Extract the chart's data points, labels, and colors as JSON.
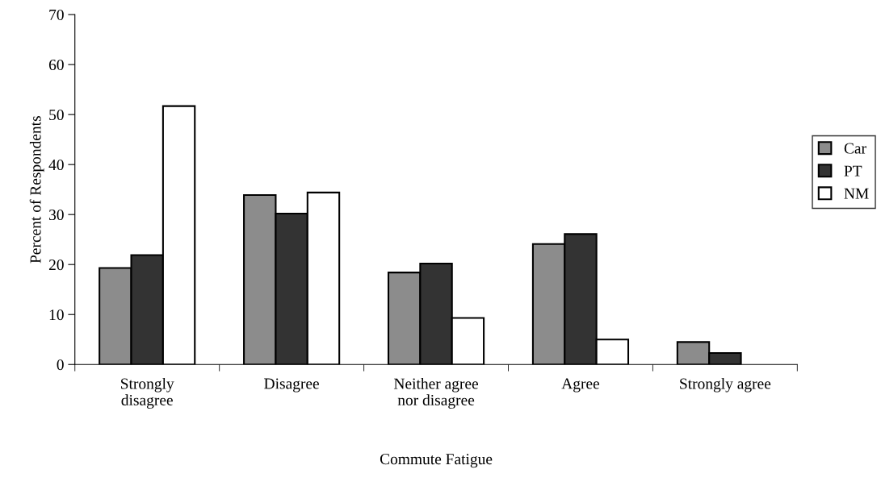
{
  "chart_data": {
    "type": "bar",
    "xlabel": "Commute Fatigue",
    "ylabel": "Percent of Respondents",
    "categories": [
      "Strongly\ndisagree",
      "Disagree",
      "Neither agree\nnor disagree",
      "Agree",
      "Strongly agree"
    ],
    "series": [
      {
        "name": "Car",
        "color": "#8c8c8c",
        "values": [
          19.3,
          33.9,
          18.4,
          24.1,
          4.5
        ]
      },
      {
        "name": "PT",
        "color": "#333333",
        "values": [
          21.9,
          30.2,
          20.2,
          26.1,
          2.3
        ]
      },
      {
        "name": "NM",
        "color": "#ffffff",
        "values": [
          51.7,
          34.4,
          9.3,
          5.0,
          null
        ]
      }
    ],
    "ylim": [
      0,
      70
    ],
    "yticks": [
      0,
      10,
      20,
      30,
      40,
      50,
      60,
      70
    ],
    "grid": false,
    "legend": "right"
  }
}
